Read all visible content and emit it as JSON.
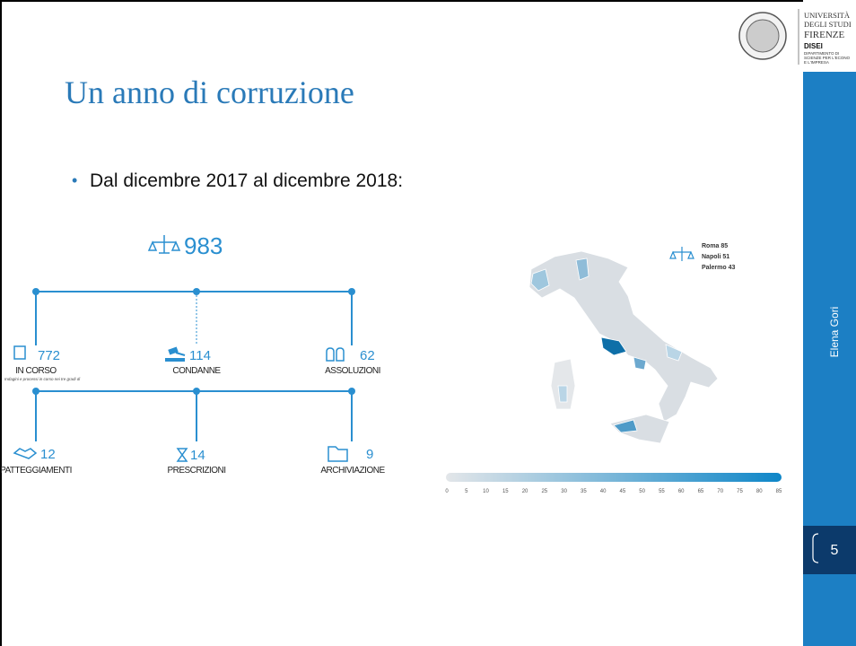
{
  "header": {
    "university": [
      "UNIVERSITÀ",
      "DEGLI STUDI",
      "FIRENZE"
    ],
    "department": "DISEI",
    "department_full": [
      "DIPARTIMENTO DI",
      "SCIENZE PER L'ECONO",
      "E L'IMPRESA"
    ]
  },
  "title": "Un anno di corruzione",
  "bullet": "Dal dicembre 2017 al dicembre 2018:",
  "infographic": {
    "total": "983",
    "items": [
      {
        "value": "772",
        "label": "IN CORSO",
        "note": "Indagini e processi in corso nei tre gradi di"
      },
      {
        "value": "114",
        "label": "CONDANNE"
      },
      {
        "value": "62",
        "label": "ASSOLUZIONI"
      },
      {
        "value": "12",
        "label": "PATTEGGIAMENTI"
      },
      {
        "value": "14",
        "label": "PRESCRIZIONI"
      },
      {
        "value": "9",
        "label": "ARCHIVIAZIONE"
      }
    ]
  },
  "map": {
    "legend": [
      "Roma 85",
      "Napoli 51",
      "Palermo 43"
    ],
    "scale": [
      0,
      5,
      10,
      15,
      20,
      25,
      30,
      35,
      40,
      45,
      50,
      55,
      60,
      65,
      70,
      75,
      80,
      85
    ]
  },
  "sidebar": {
    "author": "Elena Gori",
    "page": "5"
  }
}
